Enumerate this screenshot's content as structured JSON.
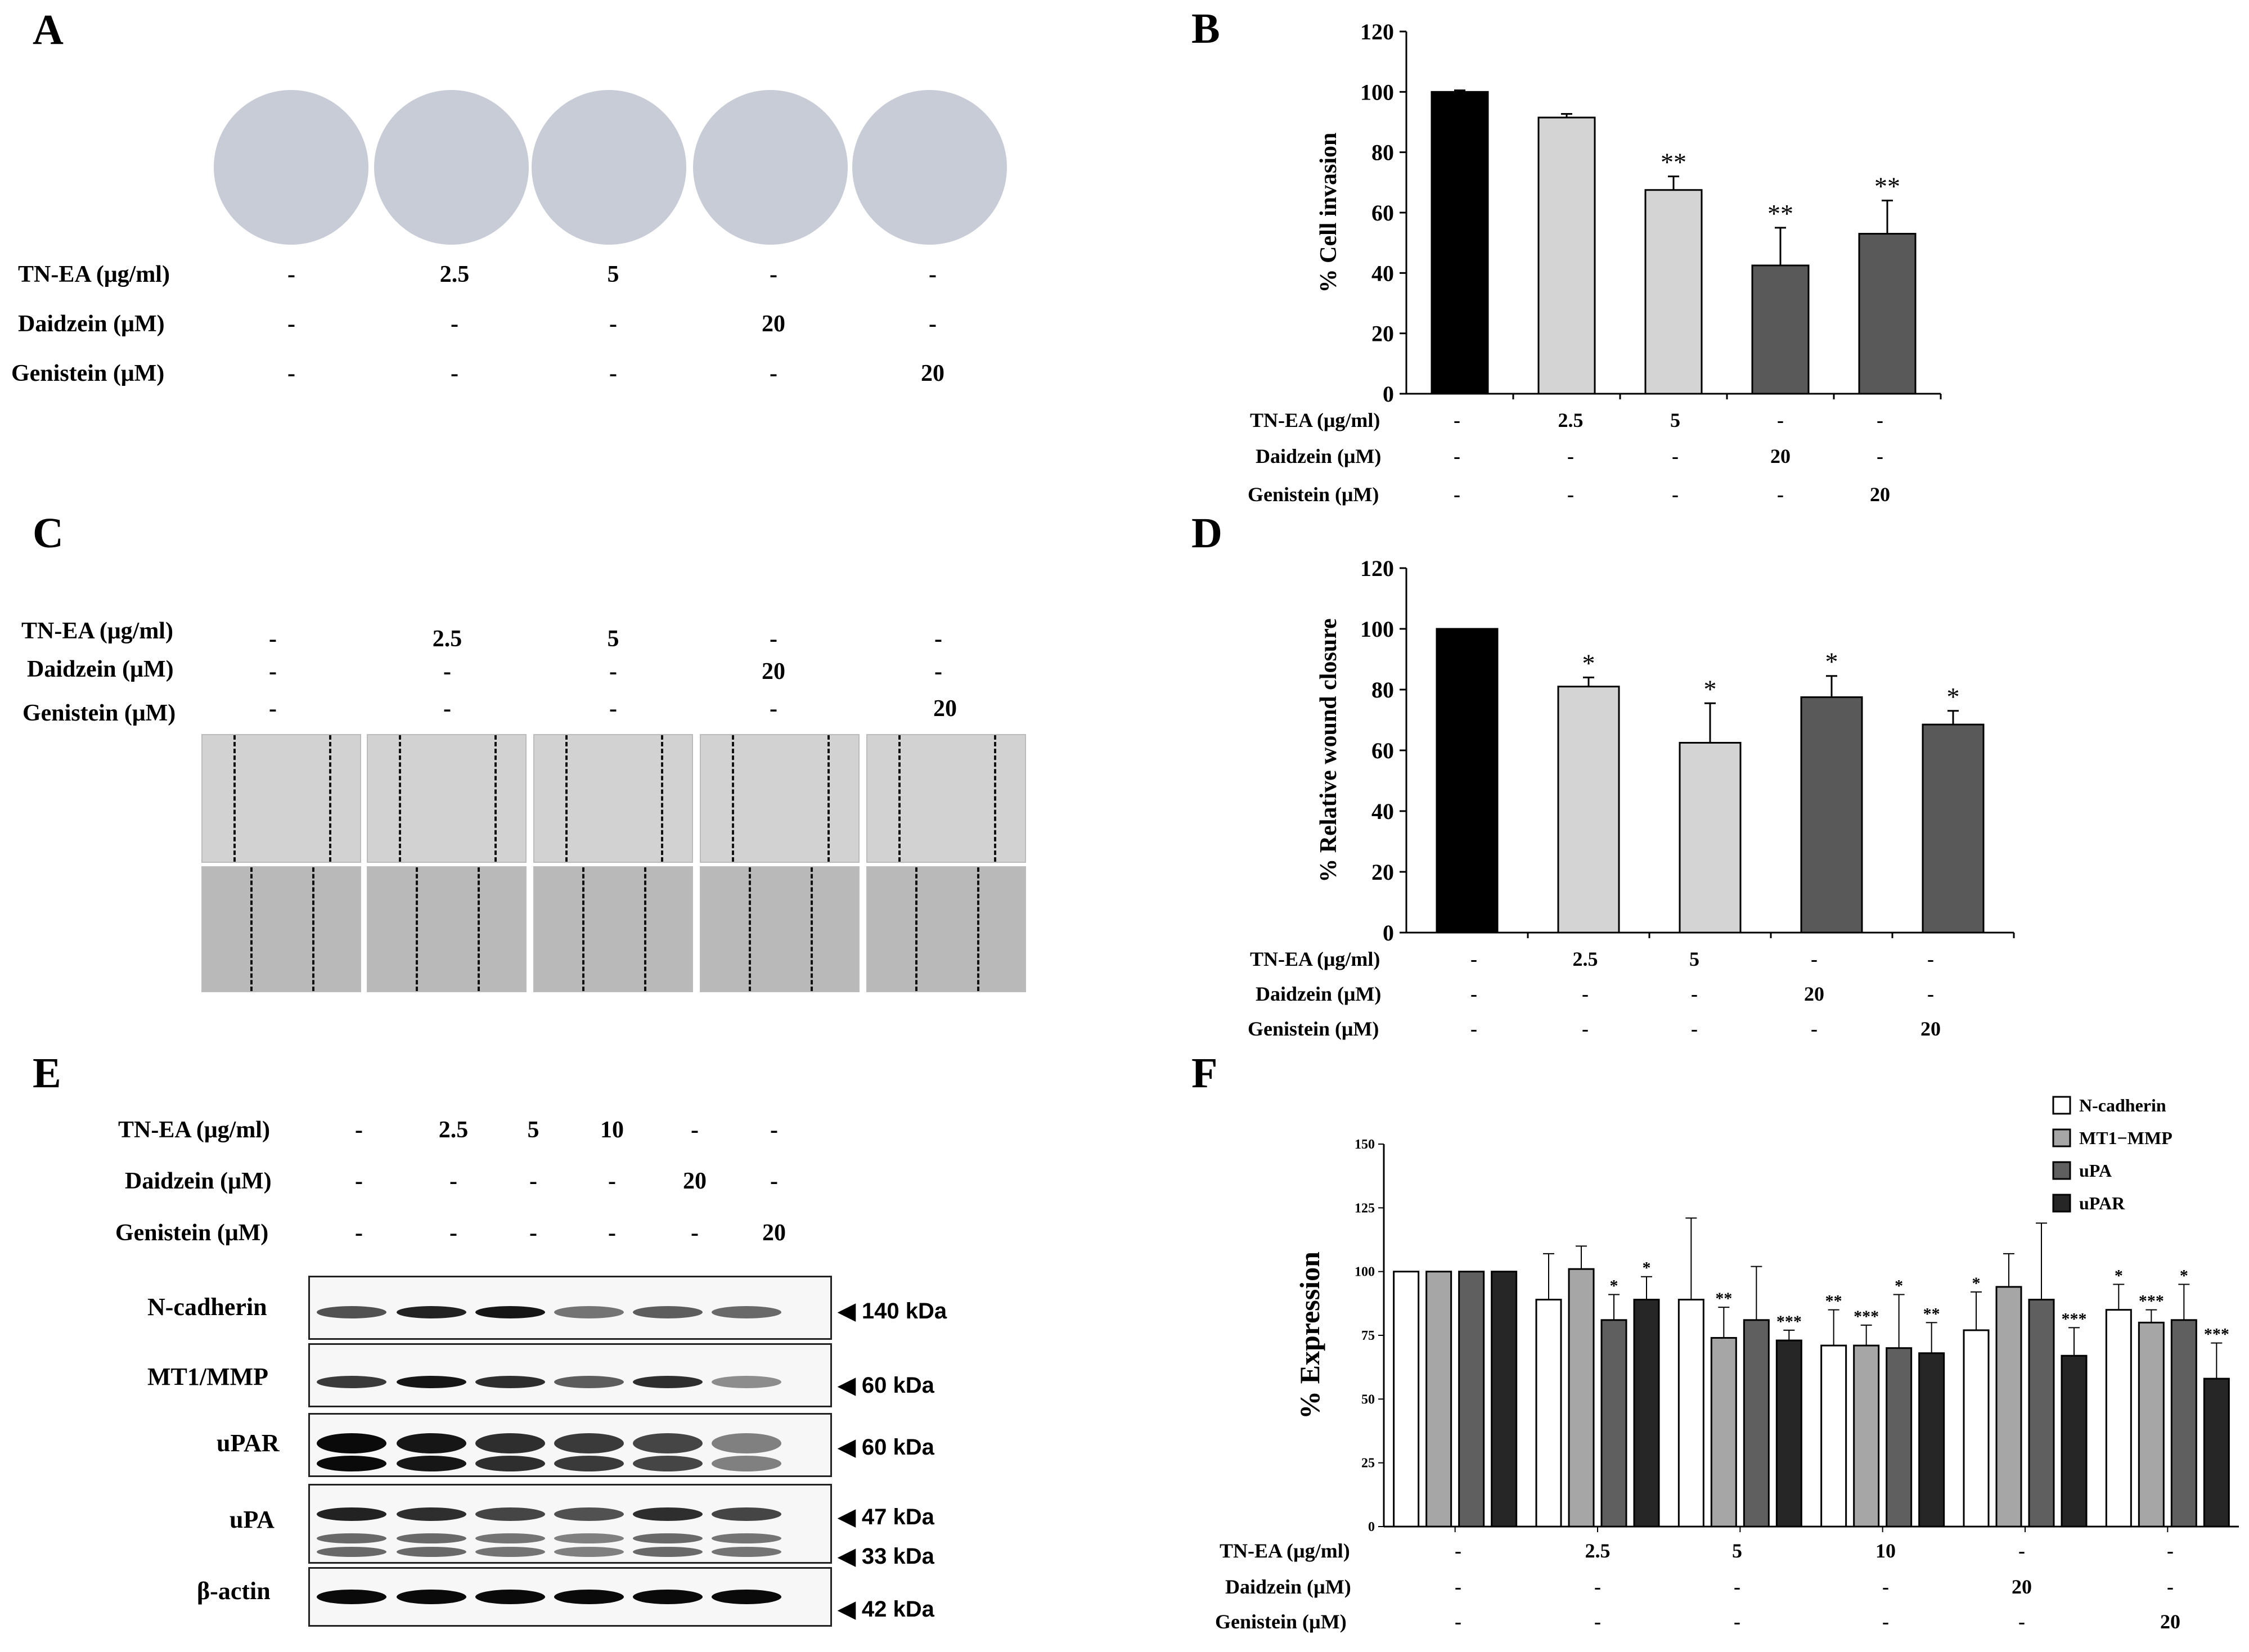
{
  "panels": {
    "A": "A",
    "B": "B",
    "C": "C",
    "D": "D",
    "E": "E",
    "F": "F"
  },
  "treatments": {
    "tn_ea": "TN-EA (μg/ml)",
    "daidzein": "Daidzein (μM)",
    "genistein": "Genistein (μM)"
  },
  "treatments_f": {
    "tn_ea": "TN-EA (µg/ml)",
    "daidzein": "Daidzein (µM)",
    "genistein": "Genistein (µM)"
  },
  "grid5": {
    "tn_ea": [
      "-",
      "2.5",
      "5",
      "-",
      "-"
    ],
    "daidzein": [
      "-",
      "-",
      "-",
      "20",
      "-"
    ],
    "genistein": [
      "-",
      "-",
      "-",
      "-",
      "20"
    ]
  },
  "grid6": {
    "tn_ea": [
      "-",
      "2.5",
      "5",
      "10",
      "-",
      "-"
    ],
    "daidzein": [
      "-",
      "-",
      "-",
      "-",
      "20",
      "-"
    ],
    "genistein": [
      "-",
      "-",
      "-",
      "-",
      "-",
      "20"
    ]
  },
  "blot": {
    "rows": [
      {
        "name": "N-cadherin",
        "markers": [
          "◀ 140 kDa"
        ]
      },
      {
        "name": "MT1/MMP",
        "markers": [
          "◀ 60 kDa"
        ]
      },
      {
        "name": "uPAR",
        "markers": [
          "◀ 60 kDa"
        ]
      },
      {
        "name": "uPA",
        "markers": [
          "◀ 47 kDa",
          "◀ 33 kDa"
        ]
      },
      {
        "name": "β-actin",
        "markers": [
          "◀ 42 kDa"
        ]
      }
    ]
  },
  "chart_data": [
    {
      "panel": "B",
      "type": "bar",
      "ylabel": "% Cell invasion",
      "ylim": [
        0,
        120
      ],
      "yticks": [
        0,
        20,
        40,
        60,
        80,
        100,
        120
      ],
      "values": [
        100,
        91.5,
        67.5,
        42.5,
        53
      ],
      "errors": [
        0.5,
        1.2,
        4.5,
        12.5,
        11
      ],
      "significance": [
        "",
        "",
        "**",
        "**",
        "**"
      ],
      "colors": [
        "#000000",
        "#d4d4d4",
        "#d4d4d4",
        "#595959",
        "#595959"
      ]
    },
    {
      "panel": "D",
      "type": "bar",
      "ylabel": "% Relative wound closure",
      "ylim": [
        0,
        120
      ],
      "yticks": [
        0,
        20,
        40,
        60,
        80,
        100,
        120
      ],
      "values": [
        100,
        81,
        62.5,
        77.5,
        68.5
      ],
      "errors": [
        0,
        3,
        13,
        7,
        4.5
      ],
      "significance": [
        "",
        "*",
        "*",
        "*",
        "*"
      ],
      "colors": [
        "#000000",
        "#d4d4d4",
        "#d4d4d4",
        "#595959",
        "#595959"
      ]
    },
    {
      "panel": "F",
      "type": "bar",
      "ylabel": "% Expression",
      "ylim": [
        0,
        150
      ],
      "yticks": [
        0,
        25,
        50,
        75,
        100,
        125,
        150
      ],
      "series": [
        {
          "name": "N-cadherin",
          "color": "#ffffff",
          "values": [
            100,
            89,
            89,
            71,
            77,
            85
          ],
          "errors": [
            0,
            18,
            32,
            14,
            15,
            10
          ],
          "significance": [
            "",
            "",
            "",
            "**",
            "*",
            "*"
          ]
        },
        {
          "name": "MT1−MMP",
          "color": "#a6a6a6",
          "values": [
            100,
            101,
            74,
            71,
            94,
            80
          ],
          "errors": [
            0,
            9,
            12,
            8,
            13,
            5
          ],
          "significance": [
            "",
            "",
            "**",
            "***",
            "",
            "***"
          ]
        },
        {
          "name": "uPA",
          "color": "#5f5f5f",
          "values": [
            100,
            81,
            81,
            70,
            89,
            81
          ],
          "errors": [
            0,
            10,
            21,
            21,
            30,
            14
          ],
          "significance": [
            "",
            "*",
            "",
            "*",
            "",
            "*"
          ]
        },
        {
          "name": "uPAR",
          "color": "#262626",
          "values": [
            100,
            89,
            73,
            68,
            67,
            58
          ],
          "errors": [
            0,
            9,
            4,
            12,
            11,
            14
          ],
          "significance": [
            "",
            "*",
            "***",
            "**",
            "***",
            "***"
          ]
        }
      ]
    }
  ]
}
